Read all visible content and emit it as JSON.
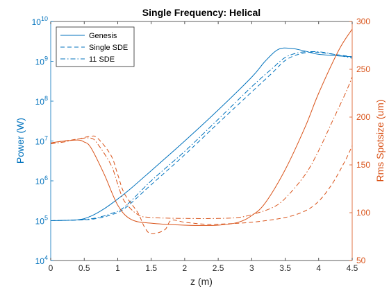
{
  "chart_data": {
    "type": "line",
    "title": "Single Frequency: Helical",
    "xlabel": "z (m)",
    "ylabel_left": "Power (W)",
    "ylabel_right": "Rms Spotsize (um)",
    "xlim": [
      0,
      4.5
    ],
    "ylim_left": [
      10000,
      10000000000
    ],
    "ylim_right": [
      50,
      300
    ],
    "yscale_left": "log",
    "grid": false,
    "legend_position": "top-left",
    "x_ticks": [
      "0",
      "0.5",
      "1",
      "1.5",
      "2",
      "2.5",
      "3",
      "3.5",
      "4",
      "4.5"
    ],
    "y_left_ticks": [
      {
        "base": "10",
        "exp": "4"
      },
      {
        "base": "10",
        "exp": "5"
      },
      {
        "base": "10",
        "exp": "6"
      },
      {
        "base": "10",
        "exp": "7"
      },
      {
        "base": "10",
        "exp": "8"
      },
      {
        "base": "10",
        "exp": "9"
      },
      {
        "base": "10",
        "exp": "10"
      }
    ],
    "y_right_ticks": [
      "50",
      "100",
      "150",
      "200",
      "250",
      "300"
    ],
    "colors": {
      "power": "#0072BD",
      "spotsize": "#D95319",
      "axis": "#262626"
    },
    "power_series": [
      {
        "name": "Genesis",
        "style": "solid",
        "x": [
          0,
          0.4,
          0.6,
          0.8,
          1.0,
          1.2,
          1.5,
          2.0,
          2.5,
          3.0,
          3.2,
          3.4,
          3.6,
          3.8,
          4.0,
          4.5
        ],
        "y": [
          100000,
          105000,
          130000,
          200000,
          350000,
          650000,
          1800000,
          10000000,
          60000000,
          400000000,
          1000000000,
          2000000000,
          2100000000,
          1800000000,
          1500000000,
          1300000000
        ]
      },
      {
        "name": "Single SDE",
        "style": "dashed",
        "x": [
          0,
          0.5,
          0.7,
          0.9,
          1.1,
          1.5,
          2.0,
          2.5,
          3.0,
          3.3,
          3.5,
          3.7,
          3.9,
          4.1,
          4.5
        ],
        "y": [
          100000,
          105000,
          115000,
          140000,
          200000,
          800000,
          4500000,
          28000000,
          170000000,
          500000000,
          1050000000,
          1500000000,
          1700000000,
          1600000000,
          1300000000
        ]
      },
      {
        "name": "11 SDE",
        "style": "dashdot",
        "x": [
          0,
          0.5,
          0.7,
          0.9,
          1.1,
          1.5,
          2.0,
          2.5,
          3.0,
          3.3,
          3.5,
          3.7,
          3.9,
          4.1,
          4.5
        ],
        "y": [
          100000,
          107000,
          120000,
          150000,
          220000,
          1000000,
          5500000,
          35000000,
          230000000,
          650000000,
          1250000000,
          1650000000,
          1750000000,
          1650000000,
          1200000000
        ]
      }
    ],
    "spotsize_series": [
      {
        "name": "Genesis",
        "style": "solid",
        "x": [
          0,
          0.2,
          0.4,
          0.5,
          0.6,
          0.8,
          1.0,
          1.2,
          1.5,
          2.0,
          2.5,
          2.8,
          3.0,
          3.2,
          3.5,
          3.8,
          4.0,
          4.3,
          4.5
        ],
        "y": [
          173,
          175,
          176,
          174,
          168,
          140,
          108,
          93,
          89,
          87,
          87,
          90,
          97,
          110,
          145,
          190,
          225,
          270,
          292
        ]
      },
      {
        "name": "Single SDE",
        "style": "dashed",
        "x": [
          0,
          0.2,
          0.4,
          0.6,
          0.7,
          0.9,
          1.0,
          1.1,
          1.3,
          1.4,
          1.5,
          1.7,
          1.8,
          2.0,
          2.3,
          2.5,
          3.0,
          3.5,
          3.8,
          4.0,
          4.2,
          4.4,
          4.5
        ],
        "y": [
          173,
          175,
          177,
          180,
          178,
          160,
          140,
          120,
          100,
          85,
          78,
          82,
          92,
          90,
          88,
          88,
          90,
          95,
          102,
          112,
          130,
          155,
          170
        ]
      },
      {
        "name": "11 SDE",
        "style": "dashdot",
        "x": [
          0,
          0.2,
          0.4,
          0.6,
          0.7,
          0.9,
          1.0,
          1.1,
          1.3,
          1.5,
          2.0,
          2.5,
          2.8,
          3.0,
          3.3,
          3.5,
          3.8,
          4.0,
          4.2,
          4.4,
          4.5
        ],
        "y": [
          172,
          174,
          177,
          178,
          172,
          150,
          130,
          112,
          98,
          95,
          94,
          94,
          95,
          98,
          105,
          115,
          140,
          165,
          195,
          225,
          242
        ]
      }
    ]
  }
}
